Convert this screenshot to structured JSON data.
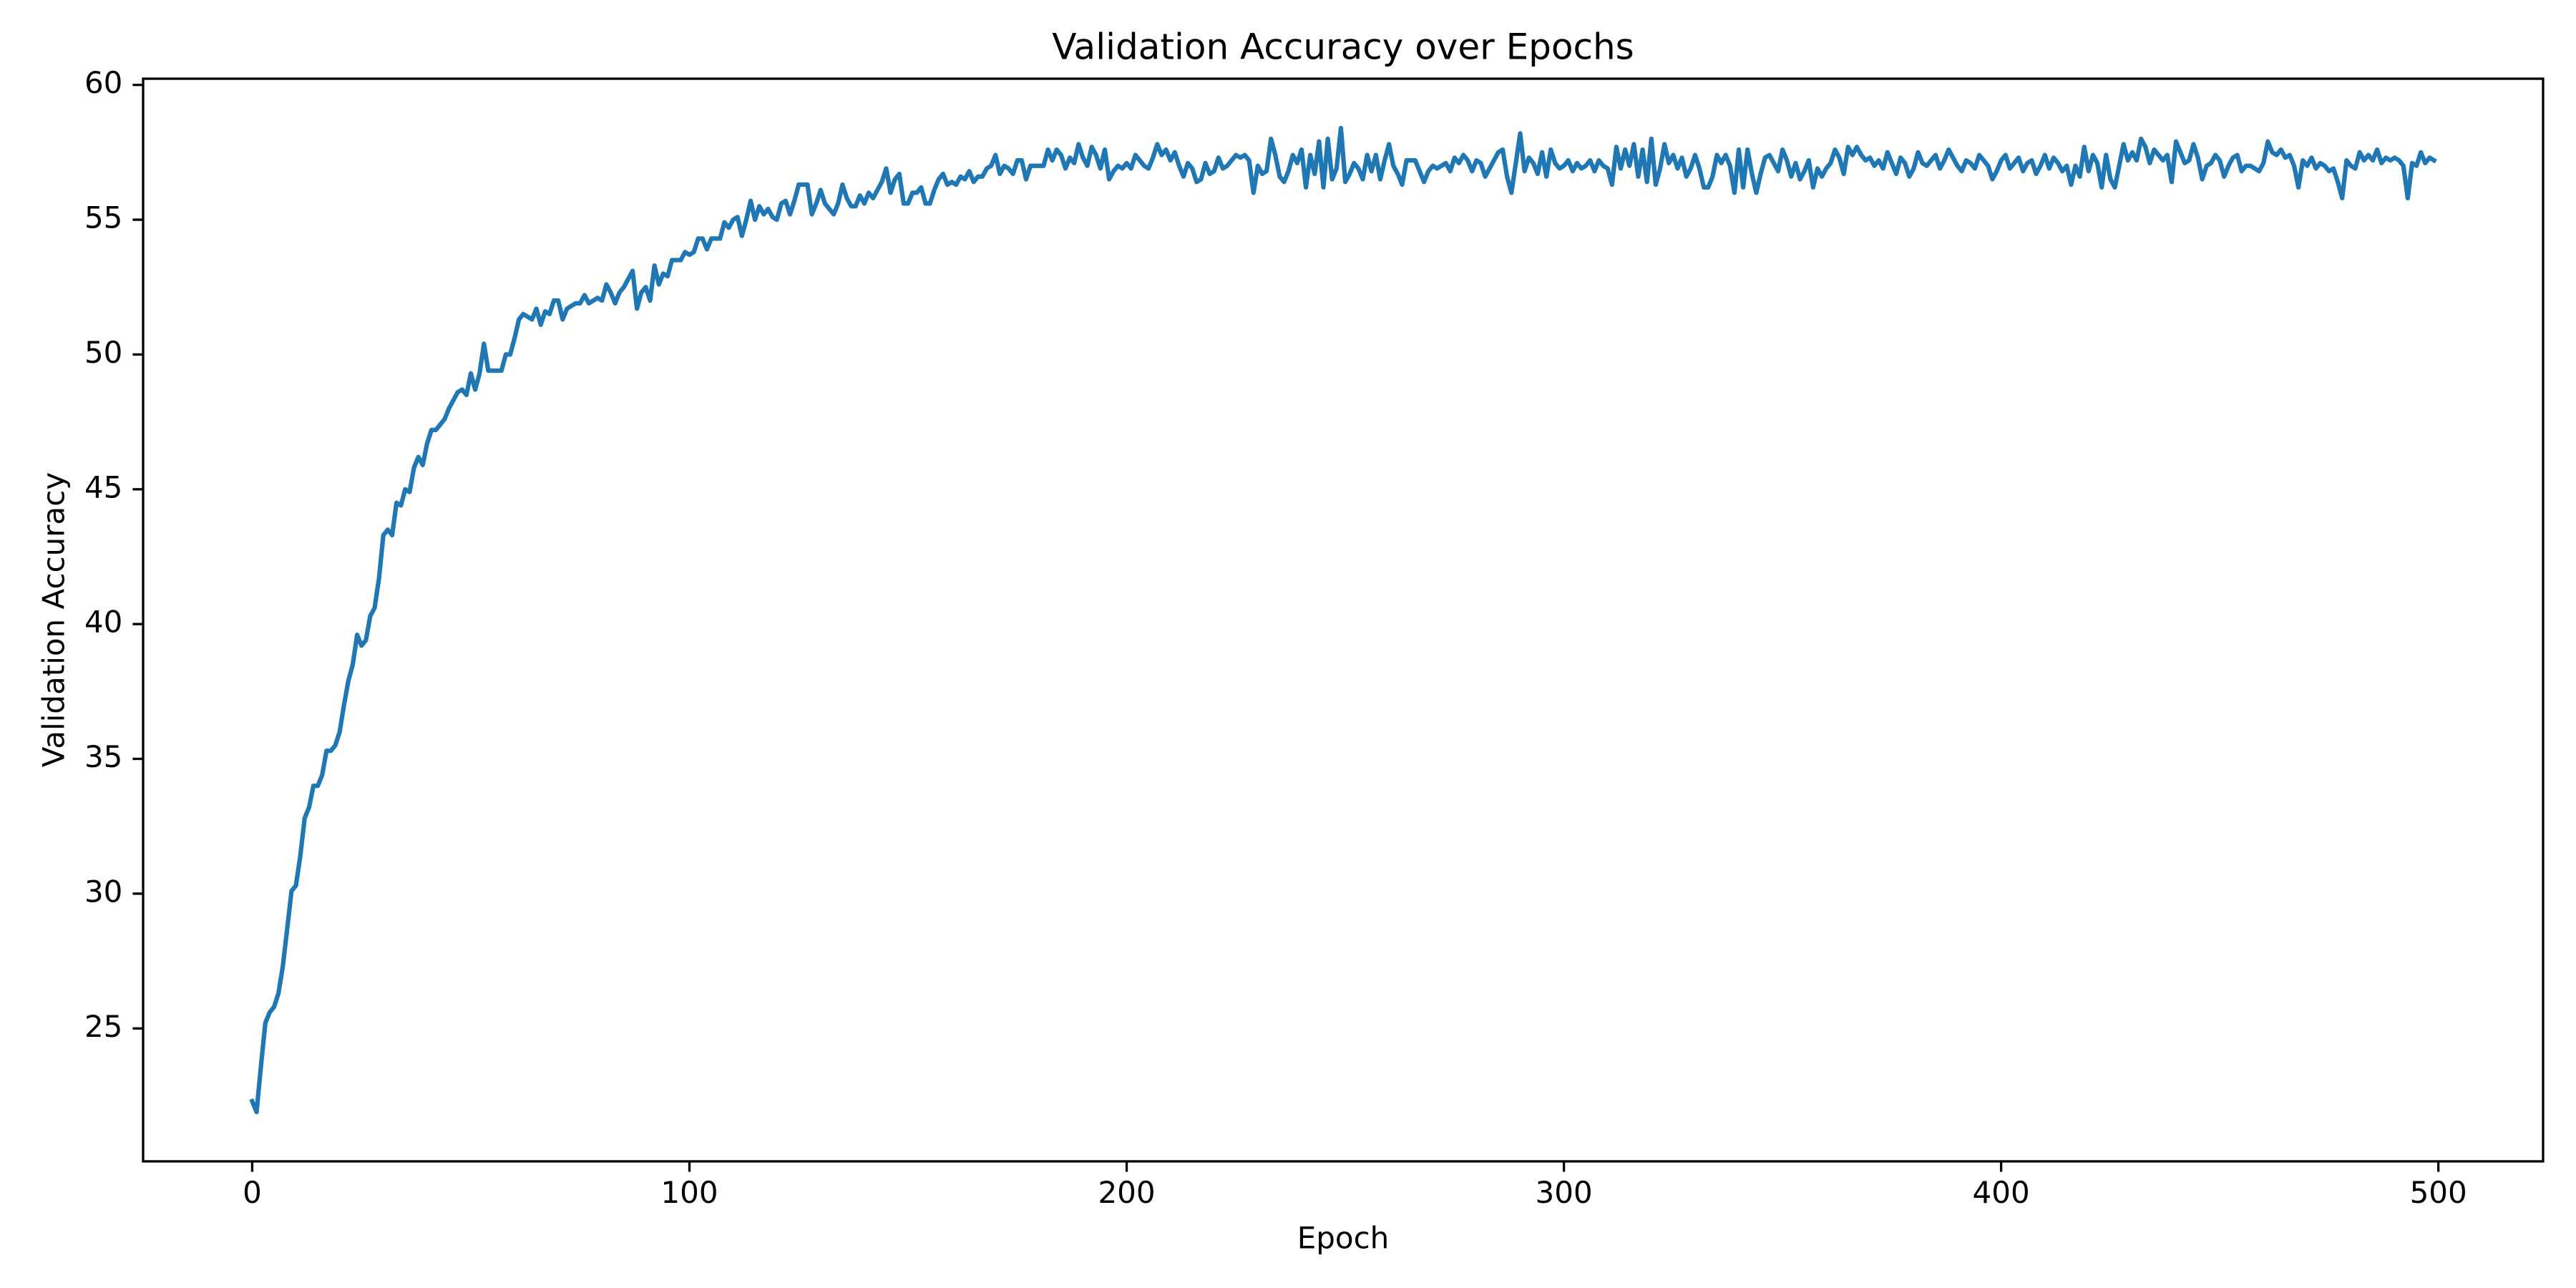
{
  "chart_data": {
    "type": "line",
    "title": "Validation Accuracy over Epochs",
    "x_label": "Epoch",
    "y_label": "Validation Accuracy",
    "xlim": [
      -24.95,
      523.95
    ],
    "ylim": [
      20.07,
      60.23
    ],
    "xticks": [
      0,
      100,
      200,
      300,
      400,
      500
    ],
    "yticks": [
      25,
      30,
      35,
      40,
      45,
      50,
      55,
      60
    ],
    "grid": false,
    "x": [
      0,
      1,
      2,
      3,
      4,
      5,
      6,
      7,
      8,
      9,
      10,
      11,
      12,
      13,
      14,
      15,
      16,
      17,
      18,
      19,
      20,
      21,
      22,
      23,
      24,
      25,
      26,
      27,
      28,
      29,
      30,
      31,
      32,
      33,
      34,
      35,
      36,
      37,
      38,
      39,
      40,
      41,
      42,
      43,
      44,
      45,
      46,
      47,
      48,
      49,
      50,
      51,
      52,
      53,
      54,
      55,
      56,
      57,
      58,
      59,
      60,
      61,
      62,
      63,
      64,
      65,
      66,
      67,
      68,
      69,
      70,
      71,
      72,
      73,
      74,
      75,
      76,
      77,
      78,
      79,
      80,
      81,
      82,
      83,
      84,
      85,
      86,
      87,
      88,
      89,
      90,
      91,
      92,
      93,
      94,
      95,
      96,
      97,
      98,
      99,
      100,
      101,
      102,
      103,
      104,
      105,
      106,
      107,
      108,
      109,
      110,
      111,
      112,
      113,
      114,
      115,
      116,
      117,
      118,
      119,
      120,
      121,
      122,
      123,
      124,
      125,
      126,
      127,
      128,
      129,
      130,
      131,
      132,
      133,
      134,
      135,
      136,
      137,
      138,
      139,
      140,
      141,
      142,
      143,
      144,
      145,
      146,
      147,
      148,
      149,
      150,
      151,
      152,
      153,
      154,
      155,
      156,
      157,
      158,
      159,
      160,
      161,
      162,
      163,
      164,
      165,
      166,
      167,
      168,
      169,
      170,
      171,
      172,
      173,
      174,
      175,
      176,
      177,
      178,
      179,
      180,
      181,
      182,
      183,
      184,
      185,
      186,
      187,
      188,
      189,
      190,
      191,
      192,
      193,
      194,
      195,
      196,
      197,
      198,
      199,
      200,
      201,
      202,
      203,
      204,
      205,
      206,
      207,
      208,
      209,
      210,
      211,
      212,
      213,
      214,
      215,
      216,
      217,
      218,
      219,
      220,
      221,
      222,
      223,
      224,
      225,
      226,
      227,
      228,
      229,
      230,
      231,
      232,
      233,
      234,
      235,
      236,
      237,
      238,
      239,
      240,
      241,
      242,
      243,
      244,
      245,
      246,
      247,
      248,
      249,
      250,
      251,
      252,
      253,
      254,
      255,
      256,
      257,
      258,
      259,
      260,
      261,
      262,
      263,
      264,
      265,
      266,
      267,
      268,
      269,
      270,
      271,
      272,
      273,
      274,
      275,
      276,
      277,
      278,
      279,
      280,
      281,
      282,
      283,
      284,
      285,
      286,
      287,
      288,
      289,
      290,
      291,
      292,
      293,
      294,
      295,
      296,
      297,
      298,
      299,
      300,
      301,
      302,
      303,
      304,
      305,
      306,
      307,
      308,
      309,
      310,
      311,
      312,
      313,
      314,
      315,
      316,
      317,
      318,
      319,
      320,
      321,
      322,
      323,
      324,
      325,
      326,
      327,
      328,
      329,
      330,
      331,
      332,
      333,
      334,
      335,
      336,
      337,
      338,
      339,
      340,
      341,
      342,
      343,
      344,
      345,
      346,
      347,
      348,
      349,
      350,
      351,
      352,
      353,
      354,
      355,
      356,
      357,
      358,
      359,
      360,
      361,
      362,
      363,
      364,
      365,
      366,
      367,
      368,
      369,
      370,
      371,
      372,
      373,
      374,
      375,
      376,
      377,
      378,
      379,
      380,
      381,
      382,
      383,
      384,
      385,
      386,
      387,
      388,
      389,
      390,
      391,
      392,
      393,
      394,
      395,
      396,
      397,
      398,
      399,
      400,
      401,
      402,
      403,
      404,
      405,
      406,
      407,
      408,
      409,
      410,
      411,
      412,
      413,
      414,
      415,
      416,
      417,
      418,
      419,
      420,
      421,
      422,
      423,
      424,
      425,
      426,
      427,
      428,
      429,
      430,
      431,
      432,
      433,
      434,
      435,
      436,
      437,
      438,
      439,
      440,
      441,
      442,
      443,
      444,
      445,
      446,
      447,
      448,
      449,
      450,
      451,
      452,
      453,
      454,
      455,
      456,
      457,
      458,
      459,
      460,
      461,
      462,
      463,
      464,
      465,
      466,
      467,
      468,
      469,
      470,
      471,
      472,
      473,
      474,
      475,
      476,
      477,
      478,
      479,
      480,
      481,
      482,
      483,
      484,
      485,
      486,
      487,
      488,
      489,
      490,
      491,
      492,
      493,
      494,
      495,
      496,
      497,
      498,
      499
    ],
    "series": [
      {
        "name": "Validation Accuracy",
        "color": "#1f77b4",
        "values": [
          22.3,
          21.9,
          23.6,
          25.2,
          25.6,
          25.8,
          26.3,
          27.3,
          28.7,
          30.1,
          30.3,
          31.4,
          32.8,
          33.2,
          34.0,
          34.0,
          34.4,
          35.3,
          35.3,
          35.5,
          36.0,
          37.0,
          37.9,
          38.5,
          39.6,
          39.2,
          39.4,
          40.3,
          40.6,
          41.7,
          43.3,
          43.5,
          43.3,
          44.5,
          44.4,
          45.0,
          44.9,
          45.8,
          46.2,
          45.9,
          46.7,
          47.2,
          47.2,
          47.4,
          47.6,
          48.0,
          48.3,
          48.6,
          48.7,
          48.5,
          49.3,
          48.7,
          49.3,
          50.4,
          49.4,
          49.4,
          49.4,
          49.4,
          50.0,
          50.0,
          50.6,
          51.3,
          51.5,
          51.4,
          51.3,
          51.7,
          51.1,
          51.6,
          51.5,
          52.0,
          52.0,
          51.3,
          51.7,
          51.8,
          51.9,
          51.9,
          52.2,
          51.9,
          52.0,
          52.1,
          52.0,
          52.6,
          52.3,
          51.9,
          52.3,
          52.5,
          52.8,
          53.1,
          51.7,
          52.3,
          52.5,
          52.0,
          53.3,
          52.6,
          53.0,
          52.9,
          53.5,
          53.5,
          53.5,
          53.8,
          53.7,
          53.8,
          54.3,
          54.3,
          53.9,
          54.3,
          54.3,
          54.3,
          54.9,
          54.7,
          55.0,
          55.1,
          54.4,
          55.0,
          55.7,
          55.0,
          55.5,
          55.2,
          55.4,
          55.1,
          55.0,
          55.6,
          55.7,
          55.2,
          55.7,
          56.3,
          56.3,
          56.3,
          55.2,
          55.6,
          56.1,
          55.6,
          55.4,
          55.2,
          55.6,
          56.3,
          55.8,
          55.5,
          55.5,
          55.9,
          55.6,
          56.0,
          55.8,
          56.1,
          56.4,
          56.9,
          56.0,
          56.5,
          56.7,
          55.6,
          55.6,
          56.0,
          56.0,
          56.2,
          55.6,
          55.6,
          56.1,
          56.5,
          56.7,
          56.3,
          56.4,
          56.3,
          56.6,
          56.5,
          56.8,
          56.4,
          56.6,
          56.6,
          56.9,
          57.0,
          57.4,
          56.7,
          57.0,
          56.9,
          56.7,
          57.2,
          57.2,
          56.5,
          57.0,
          57.0,
          57.0,
          57.0,
          57.6,
          57.2,
          57.6,
          57.4,
          56.9,
          57.3,
          57.1,
          57.8,
          57.3,
          57.0,
          57.7,
          57.4,
          56.9,
          57.6,
          56.5,
          56.8,
          57.0,
          56.9,
          57.1,
          56.9,
          57.4,
          57.2,
          57.0,
          56.9,
          57.3,
          57.8,
          57.4,
          57.6,
          57.2,
          57.5,
          57.0,
          56.6,
          57.1,
          56.9,
          56.4,
          56.5,
          57.1,
          56.7,
          56.8,
          57.3,
          56.9,
          57.0,
          57.2,
          57.4,
          57.3,
          57.4,
          57.2,
          56.0,
          57.0,
          56.7,
          56.8,
          58.0,
          57.4,
          56.6,
          56.4,
          56.8,
          57.4,
          57.1,
          57.6,
          56.2,
          57.4,
          56.7,
          57.9,
          56.2,
          58.0,
          56.5,
          56.9,
          58.4,
          56.4,
          56.7,
          57.1,
          56.9,
          56.5,
          57.4,
          56.8,
          57.4,
          56.5,
          57.2,
          57.8,
          57.0,
          56.7,
          56.3,
          57.2,
          57.2,
          57.2,
          56.8,
          56.4,
          56.8,
          57.0,
          56.9,
          57.0,
          57.1,
          56.8,
          57.3,
          57.1,
          57.4,
          57.2,
          56.8,
          57.2,
          57.1,
          56.6,
          56.9,
          57.2,
          57.5,
          57.6,
          56.6,
          56.0,
          57.1,
          58.2,
          56.8,
          57.3,
          57.1,
          56.7,
          57.5,
          56.6,
          57.6,
          57.1,
          56.9,
          57.0,
          57.2,
          56.8,
          57.1,
          56.9,
          57.0,
          57.2,
          56.8,
          57.2,
          57.0,
          56.9,
          56.3,
          57.7,
          56.9,
          57.6,
          57.0,
          57.8,
          56.6,
          57.6,
          56.4,
          58.0,
          56.3,
          56.9,
          57.8,
          57.1,
          57.4,
          56.9,
          57.3,
          56.6,
          56.9,
          57.4,
          56.9,
          56.2,
          56.2,
          56.6,
          57.4,
          57.1,
          57.4,
          57.0,
          56.0,
          57.6,
          56.2,
          57.6,
          56.7,
          56.0,
          56.7,
          57.3,
          57.4,
          57.1,
          56.8,
          57.6,
          57.2,
          56.6,
          57.1,
          56.5,
          56.8,
          57.2,
          56.2,
          56.9,
          56.6,
          56.9,
          57.1,
          57.6,
          57.3,
          56.7,
          57.7,
          57.4,
          57.7,
          57.4,
          57.2,
          57.3,
          57.0,
          57.2,
          56.9,
          57.5,
          57.1,
          56.7,
          57.3,
          57.1,
          56.6,
          56.9,
          57.5,
          57.1,
          57.0,
          57.2,
          57.4,
          56.9,
          57.2,
          57.6,
          57.3,
          57.0,
          56.8,
          57.2,
          57.1,
          56.9,
          57.4,
          57.2,
          57.0,
          56.5,
          56.8,
          57.2,
          57.4,
          56.9,
          57.1,
          57.3,
          56.8,
          57.1,
          57.2,
          56.7,
          57.0,
          57.4,
          56.9,
          57.3,
          57.1,
          56.8,
          57.0,
          56.3,
          57.0,
          56.6,
          57.7,
          56.8,
          57.4,
          57.1,
          56.2,
          57.4,
          56.5,
          56.2,
          57.0,
          57.8,
          57.2,
          57.5,
          57.2,
          58.0,
          57.7,
          57.1,
          57.6,
          57.4,
          57.2,
          57.4,
          56.4,
          57.9,
          57.5,
          57.1,
          57.2,
          57.8,
          57.3,
          56.5,
          57.0,
          57.1,
          57.4,
          57.2,
          56.6,
          57.0,
          57.3,
          57.4,
          56.8,
          57.0,
          57.0,
          56.9,
          56.8,
          57.1,
          57.9,
          57.5,
          57.4,
          57.6,
          57.3,
          57.4,
          57.0,
          56.2,
          57.2,
          57.0,
          57.3,
          56.9,
          57.1,
          57.0,
          56.8,
          56.9,
          56.4,
          55.8,
          57.2,
          57.0,
          56.9,
          57.5,
          57.2,
          57.4,
          57.2,
          57.6,
          57.1,
          57.3,
          57.2,
          57.3,
          57.2,
          57.0,
          55.8,
          57.1,
          57.0,
          57.5,
          57.1,
          57.3,
          57.2
        ]
      }
    ]
  }
}
